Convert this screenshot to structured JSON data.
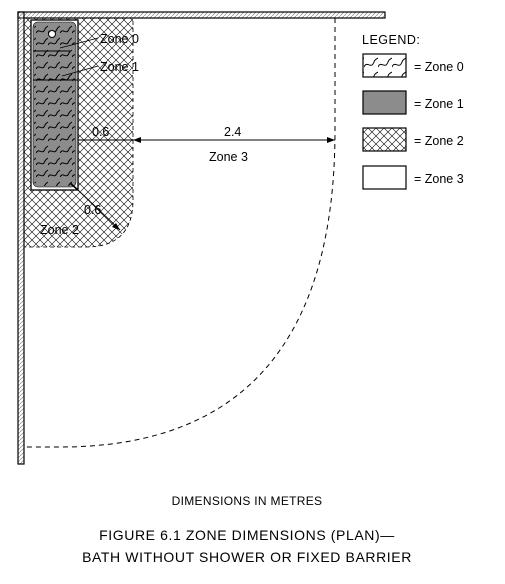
{
  "diagram": {
    "zone_labels": {
      "zone0": "Zone 0",
      "zone1": "Zone 1",
      "zone2": "Zone 2",
      "zone3": "Zone 3"
    },
    "dimensions": {
      "left_width": "0.6",
      "bottom_width": "0.6",
      "main_span": "2.4"
    },
    "legend": {
      "title": "LEGEND:",
      "items": [
        {
          "label": "= Zone 0",
          "pattern": "wavy-lines"
        },
        {
          "label": "= Zone 1",
          "pattern": "solid-grey"
        },
        {
          "label": "= Zone 2",
          "pattern": "crosshatch"
        },
        {
          "label": "= Zone 3",
          "pattern": "blank"
        }
      ]
    },
    "note": "DIMENSIONS IN METRES",
    "caption": {
      "line1": "FIGURE  6.1   ZONE DIMENSIONS (PLAN)—",
      "line2": "BATH WITHOUT SHOWER OR FIXED BARRIER"
    },
    "colors": {
      "zone1_fill": "#8c8c8c",
      "line": "#000000",
      "wall_hatch": "#9a9a9a"
    }
  }
}
